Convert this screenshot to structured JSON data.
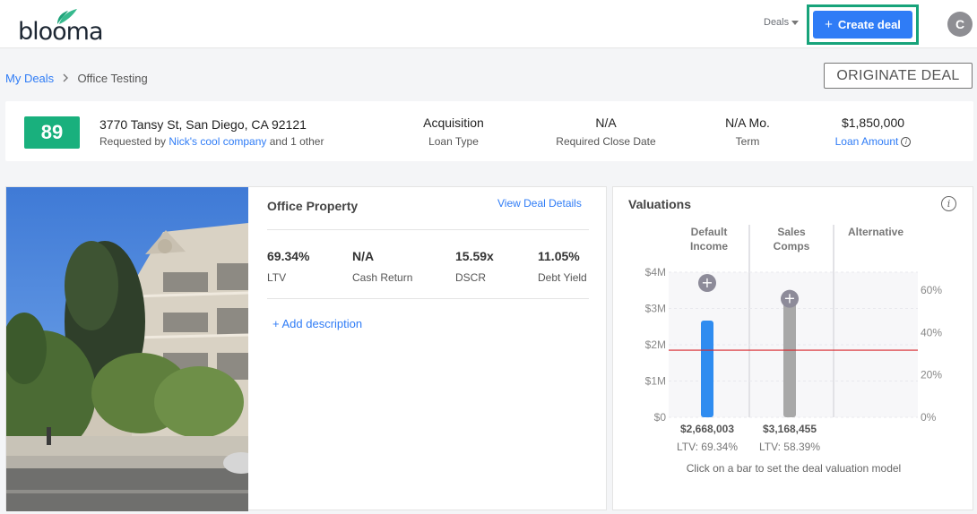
{
  "header": {
    "logo_text": "blooma",
    "deals_menu": "Deals",
    "create_deal": "Create deal",
    "avatar_initial": "C"
  },
  "breadcrumb": {
    "root": "My Deals",
    "current": "Office Testing"
  },
  "originate_label": "ORIGINATE DEAL",
  "summary": {
    "score": "89",
    "address": "3770 Tansy St, San Diego, CA 92121",
    "requested_prefix": "Requested by",
    "requested_company": "Nick's cool company",
    "requested_suffix": "and 1 other",
    "stats": [
      {
        "value": "Acquisition",
        "label": "Loan Type"
      },
      {
        "value": "N/A",
        "label": "Required Close Date"
      },
      {
        "value": "N/A Mo.",
        "label": "Term"
      },
      {
        "value": "$1,850,000",
        "label": "Loan Amount"
      }
    ]
  },
  "property": {
    "title": "Office Property",
    "view_details": "View Deal Details",
    "metrics": [
      {
        "value": "69.34%",
        "label": "LTV"
      },
      {
        "value": "N/A",
        "label": "Cash Return"
      },
      {
        "value": "15.59x",
        "label": "DSCR"
      },
      {
        "value": "11.05%",
        "label": "Debt Yield"
      }
    ],
    "add_description": "+ Add description"
  },
  "valuations": {
    "title": "Valuations",
    "footnote": "Click on a bar to set the deal valuation model"
  },
  "chart_data": {
    "type": "bar",
    "categories": [
      "Default Income",
      "Sales Comps",
      "Alternative"
    ],
    "category_lines": [
      [
        "Default",
        "Income"
      ],
      [
        "Sales",
        "Comps"
      ],
      [
        "Alternative"
      ]
    ],
    "values": [
      2668003,
      3168455,
      null
    ],
    "value_labels": [
      "$2,668,003",
      "$3,168,455",
      ""
    ],
    "ltv_labels": [
      "LTV: 69.34%",
      "LTV: 58.39%",
      ""
    ],
    "bar_colors": [
      "#2f8cf0",
      "#a8a8a8",
      null
    ],
    "ylim": [
      0,
      4000000
    ],
    "y_ticks": [
      0,
      1000000,
      2000000,
      3000000,
      4000000
    ],
    "y_tick_labels": [
      "$0",
      "$1M",
      "$2M",
      "$3M",
      "$4M"
    ],
    "y2_ticks": [
      0,
      20,
      40,
      60
    ],
    "y2_tick_labels": [
      "0%",
      "20%",
      "40%",
      "60%"
    ],
    "reference_value": 1850000,
    "reference_color": "#d9252b"
  }
}
